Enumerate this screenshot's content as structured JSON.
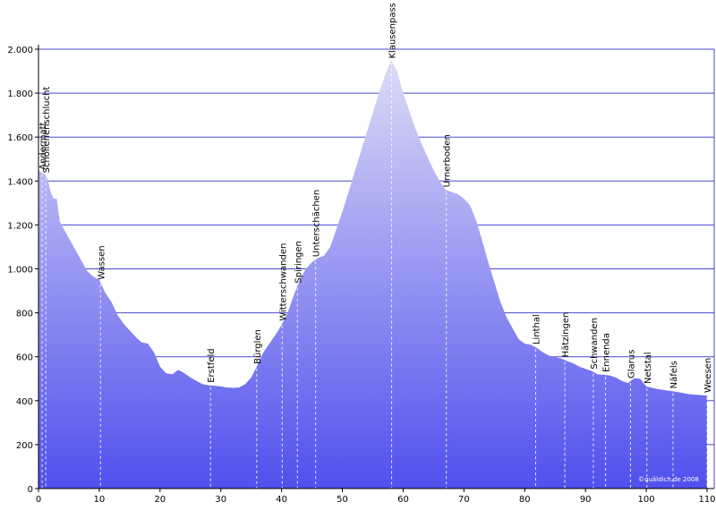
{
  "chart_data": {
    "type": "area",
    "title": "",
    "xlabel": "",
    "ylabel": "",
    "xlim": [
      0,
      110
    ],
    "ylim": [
      0,
      2000
    ],
    "grid": true,
    "x_ticks": [
      0,
      10,
      20,
      30,
      40,
      50,
      60,
      70,
      80,
      90,
      100,
      110
    ],
    "y_ticks": [
      0,
      200,
      400,
      600,
      800,
      1000,
      1200,
      1400,
      1600,
      1800,
      2000
    ],
    "y_tick_labels": [
      "0",
      "200",
      "400",
      "600",
      "800",
      "1.000",
      "1.200",
      "1.400",
      "1.600",
      "1.800",
      "2.000"
    ],
    "profile": [
      [
        0,
        1447
      ],
      [
        0.5,
        1440
      ],
      [
        1,
        1432
      ],
      [
        1.5,
        1412
      ],
      [
        2,
        1350
      ],
      [
        2.5,
        1320
      ],
      [
        3,
        1320
      ],
      [
        3.5,
        1215
      ],
      [
        5,
        1140
      ],
      [
        6,
        1090
      ],
      [
        7,
        1040
      ],
      [
        8,
        990
      ],
      [
        9,
        965
      ],
      [
        10,
        950
      ],
      [
        11,
        890
      ],
      [
        12,
        850
      ],
      [
        13,
        790
      ],
      [
        14,
        750
      ],
      [
        15,
        720
      ],
      [
        16,
        690
      ],
      [
        17,
        665
      ],
      [
        18,
        660
      ],
      [
        19,
        620
      ],
      [
        20,
        555
      ],
      [
        21,
        525
      ],
      [
        22,
        520
      ],
      [
        23,
        540
      ],
      [
        24,
        525
      ],
      [
        25,
        505
      ],
      [
        26,
        490
      ],
      [
        27,
        475
      ],
      [
        28,
        470
      ],
      [
        29,
        468
      ],
      [
        30,
        465
      ],
      [
        31,
        460
      ],
      [
        32,
        458
      ],
      [
        33,
        460
      ],
      [
        34,
        475
      ],
      [
        35,
        505
      ],
      [
        36,
        560
      ],
      [
        37,
        620
      ],
      [
        38,
        660
      ],
      [
        39,
        700
      ],
      [
        40,
        745
      ],
      [
        41,
        800
      ],
      [
        42,
        880
      ],
      [
        43,
        950
      ],
      [
        44,
        1000
      ],
      [
        45,
        1030
      ],
      [
        46,
        1050
      ],
      [
        47,
        1060
      ],
      [
        48,
        1100
      ],
      [
        49,
        1180
      ],
      [
        50,
        1260
      ],
      [
        51,
        1350
      ],
      [
        52,
        1440
      ],
      [
        53,
        1530
      ],
      [
        54,
        1620
      ],
      [
        55,
        1710
      ],
      [
        56,
        1800
      ],
      [
        57,
        1880
      ],
      [
        58,
        1950
      ],
      [
        59,
        1900
      ],
      [
        60,
        1800
      ],
      [
        61,
        1720
      ],
      [
        62,
        1640
      ],
      [
        63,
        1570
      ],
      [
        64,
        1510
      ],
      [
        65,
        1450
      ],
      [
        66,
        1400
      ],
      [
        67,
        1360
      ],
      [
        68,
        1350
      ],
      [
        69,
        1340
      ],
      [
        70,
        1320
      ],
      [
        71,
        1290
      ],
      [
        72,
        1220
      ],
      [
        73,
        1130
      ],
      [
        74,
        1030
      ],
      [
        75,
        940
      ],
      [
        76,
        850
      ],
      [
        77,
        780
      ],
      [
        78,
        730
      ],
      [
        79,
        680
      ],
      [
        80,
        660
      ],
      [
        81,
        655
      ],
      [
        82,
        640
      ],
      [
        83,
        620
      ],
      [
        84,
        605
      ],
      [
        85,
        598
      ],
      [
        86,
        592
      ],
      [
        87,
        580
      ],
      [
        88,
        570
      ],
      [
        89,
        555
      ],
      [
        90,
        545
      ],
      [
        91,
        535
      ],
      [
        92,
        520
      ],
      [
        93,
        518
      ],
      [
        94,
        515
      ],
      [
        95,
        505
      ],
      [
        96,
        490
      ],
      [
        97,
        480
      ],
      [
        98,
        502
      ],
      [
        99,
        500
      ],
      [
        100,
        465
      ],
      [
        101,
        458
      ],
      [
        102,
        452
      ],
      [
        103,
        448
      ],
      [
        104,
        444
      ],
      [
        105,
        440
      ],
      [
        106,
        435
      ],
      [
        107,
        430
      ],
      [
        108,
        427
      ],
      [
        109,
        425
      ],
      [
        110,
        423
      ]
    ],
    "places": [
      {
        "name": "Andermatt",
        "km": 0.6
      },
      {
        "name": "Schöllenenschlucht",
        "km": 1.2
      },
      {
        "name": "Wassen",
        "km": 10.2
      },
      {
        "name": "Erstfeld",
        "km": 28.3
      },
      {
        "name": "Bürglen",
        "km": 35.9
      },
      {
        "name": "Witterschwanden",
        "km": 40.1
      },
      {
        "name": "Spiringen",
        "km": 42.6
      },
      {
        "name": "Unterschächen",
        "km": 45.6
      },
      {
        "name": "Klausenpass",
        "km": 58.1
      },
      {
        "name": "Urnerboden",
        "km": 67.1
      },
      {
        "name": "Linthal",
        "km": 81.8
      },
      {
        "name": "Hätzingen",
        "km": 86.6
      },
      {
        "name": "Schwanden",
        "km": 91.3
      },
      {
        "name": "Ennenda",
        "km": 93.3
      },
      {
        "name": "Glarus",
        "km": 97.4
      },
      {
        "name": "Netstal",
        "km": 100.1
      },
      {
        "name": "Näfels",
        "km": 104.4
      },
      {
        "name": "Weesen",
        "km": 110
      }
    ],
    "credit": "©quäldich.de 2008",
    "colors": {
      "fill_top": "#dcdcf6",
      "fill_bottom": "#5050ee",
      "grid": "#4a4ad2",
      "marker": "#ffffff",
      "axis": "#000000"
    }
  }
}
